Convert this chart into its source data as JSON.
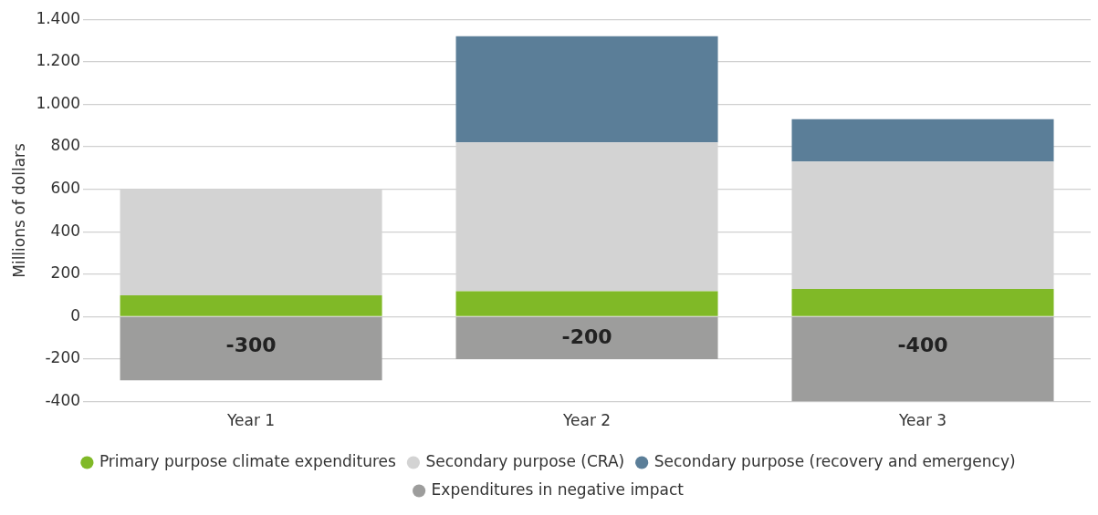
{
  "chart_data": {
    "type": "bar",
    "ylabel": "Millions of dollars",
    "categories": [
      "Year 1",
      "Year 2",
      "Year 3"
    ],
    "stacked": true,
    "series": [
      {
        "name": "Primary purpose climate expenditures",
        "color": "#80b927",
        "values": [
          100,
          120,
          130
        ]
      },
      {
        "name": "Secondary purpose (CRA)",
        "color": "#d3d3d3",
        "values": [
          500,
          700,
          600
        ]
      },
      {
        "name": "Secondary purpose (recovery and emergency)",
        "color": "#5b7e98",
        "values": [
          null,
          500,
          200
        ]
      },
      {
        "name": "Expenditures in negative impact",
        "color": "#9d9d9c",
        "values": [
          -300,
          -200,
          -400
        ],
        "value_labels": [
          "-300",
          "-200",
          "-400"
        ]
      }
    ],
    "ylim": [
      -400,
      1400
    ],
    "yticks": [
      {
        "value": -400,
        "label": "-400"
      },
      {
        "value": -200,
        "label": "-200"
      },
      {
        "value": 0,
        "label": "0"
      },
      {
        "value": 200,
        "label": "200"
      },
      {
        "value": 400,
        "label": "400"
      },
      {
        "value": 600,
        "label": "600"
      },
      {
        "value": 800,
        "label": "800"
      },
      {
        "value": 1000,
        "label": "1.000"
      },
      {
        "value": 1200,
        "label": "1.200"
      },
      {
        "value": 1400,
        "label": "1.400"
      }
    ],
    "grid": "y",
    "legend": "bottom"
  }
}
